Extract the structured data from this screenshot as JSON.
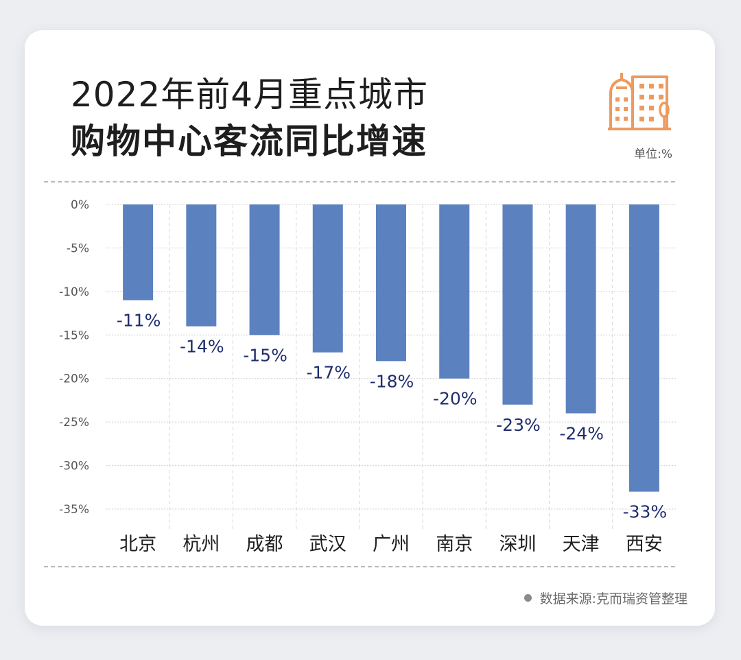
{
  "header": {
    "title_line1": "2022年前4月重点城市",
    "title_line2": "购物中心客流同比增速",
    "unit": "单位:%"
  },
  "footer": {
    "source": "数据来源:克而瑞资管整理"
  },
  "colors": {
    "bar": "#5b82bf",
    "label": "#1f2d6e",
    "icon": "#ee9a5e",
    "axis_text": "#555555"
  },
  "icons": {
    "header": "city-buildings-icon",
    "source_bullet": "dot-icon"
  },
  "chart_data": {
    "type": "bar",
    "title": "2022年前4月重点城市购物中心客流同比增速",
    "unit": "%",
    "categories": [
      "北京",
      "杭州",
      "成都",
      "武汉",
      "广州",
      "南京",
      "深圳",
      "天津",
      "西安"
    ],
    "values": [
      -11,
      -14,
      -15,
      -17,
      -18,
      -20,
      -23,
      -24,
      -33
    ],
    "value_labels": [
      "-11%",
      "-14%",
      "-15%",
      "-17%",
      "-18%",
      "-20%",
      "-23%",
      "-24%",
      "-33%"
    ],
    "y_ticks": [
      0,
      -5,
      -10,
      -15,
      -20,
      -25,
      -30,
      -35
    ],
    "y_tick_labels": [
      "0%",
      "-5%",
      "-10%",
      "-15%",
      "-20%",
      "-25%",
      "-30%",
      "-35%"
    ],
    "ylim": [
      -35,
      0
    ],
    "grid": true,
    "legend": "none"
  }
}
